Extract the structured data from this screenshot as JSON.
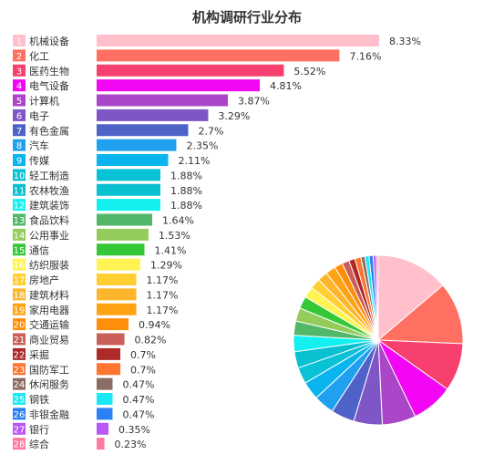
{
  "chart_data": {
    "type": "bar",
    "title": "机构调研行业分布",
    "categories": [
      "机械设备",
      "化工",
      "医药生物",
      "电气设备",
      "计算机",
      "电子",
      "有色金属",
      "汽车",
      "传媒",
      "轻工制造",
      "农林牧渔",
      "建筑装饰",
      "食品饮料",
      "公用事业",
      "通信",
      "纺织服装",
      "房地产",
      "建筑材料",
      "家用电器",
      "交通运输",
      "商业贸易",
      "采掘",
      "国防军工",
      "休闲服务",
      "钢铁",
      "非银金融",
      "银行",
      "综合"
    ],
    "values": [
      8.33,
      7.16,
      5.52,
      4.81,
      3.87,
      3.29,
      2.7,
      2.35,
      2.11,
      1.88,
      1.88,
      1.88,
      1.64,
      1.53,
      1.41,
      1.29,
      1.17,
      1.17,
      1.17,
      0.94,
      0.82,
      0.7,
      0.7,
      0.47,
      0.47,
      0.47,
      0.35,
      0.23
    ],
    "value_labels": [
      "8.33%",
      "7.16%",
      "5.52%",
      "4.81%",
      "3.87%",
      "3.29%",
      "2.7%",
      "2.35%",
      "2.11%",
      "1.88%",
      "1.88%",
      "1.88%",
      "1.64%",
      "1.53%",
      "1.41%",
      "1.29%",
      "1.17%",
      "1.17%",
      "1.17%",
      "0.94%",
      "0.82%",
      "0.7%",
      "0.7%",
      "0.47%",
      "0.47%",
      "0.47%",
      "0.35%",
      "0.23%"
    ],
    "ranks": [
      "1",
      "2",
      "3",
      "4",
      "5",
      "6",
      "7",
      "8",
      "9",
      "10",
      "11",
      "12",
      "13",
      "14",
      "15",
      "16",
      "17",
      "18",
      "19",
      "20",
      "21",
      "22",
      "23",
      "24",
      "25",
      "26",
      "27",
      "28"
    ],
    "colors": [
      "#ffc0cb",
      "#ff7062",
      "#f7406d",
      "#f306f3",
      "#ab46c8",
      "#7f56c6",
      "#4f62c7",
      "#1fa1f0",
      "#0ab5ef",
      "#09c2d6",
      "#08c0cf",
      "#13f0f0",
      "#52b769",
      "#93cc5a",
      "#34c838",
      "#fff453",
      "#ffcf31",
      "#fdb52c",
      "#ffa214",
      "#ff8e08",
      "#c95f58",
      "#ad2a29",
      "#ff742e",
      "#8c6d64",
      "#18e9f5",
      "#2b81f6",
      "#b858f6",
      "#ff7aa1"
    ],
    "also_shown_as": "pie",
    "grid": false,
    "legend": "none"
  }
}
